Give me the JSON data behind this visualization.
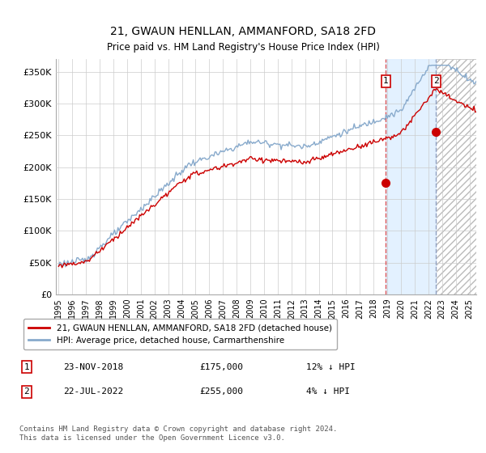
{
  "title": "21, GWAUN HENLLAN, AMMANFORD, SA18 2FD",
  "subtitle": "Price paid vs. HM Land Registry's House Price Index (HPI)",
  "ylabel_ticks": [
    "£0",
    "£50K",
    "£100K",
    "£150K",
    "£200K",
    "£250K",
    "£300K",
    "£350K"
  ],
  "ytick_values": [
    0,
    50000,
    100000,
    150000,
    200000,
    250000,
    300000,
    350000
  ],
  "ylim": [
    0,
    370000
  ],
  "xlim_start": 1994.8,
  "xlim_end": 2025.5,
  "red_line_color": "#cc0000",
  "blue_line_color": "#88aacc",
  "marker1_date": 2018.9,
  "marker1_price": 175000,
  "marker2_date": 2022.55,
  "marker2_price": 255000,
  "legend_label_red": "21, GWAUN HENLLAN, AMMANFORD, SA18 2FD (detached house)",
  "legend_label_blue": "HPI: Average price, detached house, Carmarthenshire",
  "annotation1_date": "23-NOV-2018",
  "annotation1_price": "£175,000",
  "annotation1_hpi": "12% ↓ HPI",
  "annotation2_date": "22-JUL-2022",
  "annotation2_price": "£255,000",
  "annotation2_hpi": "4% ↓ HPI",
  "footer": "Contains HM Land Registry data © Crown copyright and database right 2024.\nThis data is licensed under the Open Government Licence v3.0.",
  "shaded_color": "#ddeeff",
  "hatch_color": "#e8e8e8",
  "vline1_color": "#dd4444",
  "vline2_color": "#8899bb"
}
